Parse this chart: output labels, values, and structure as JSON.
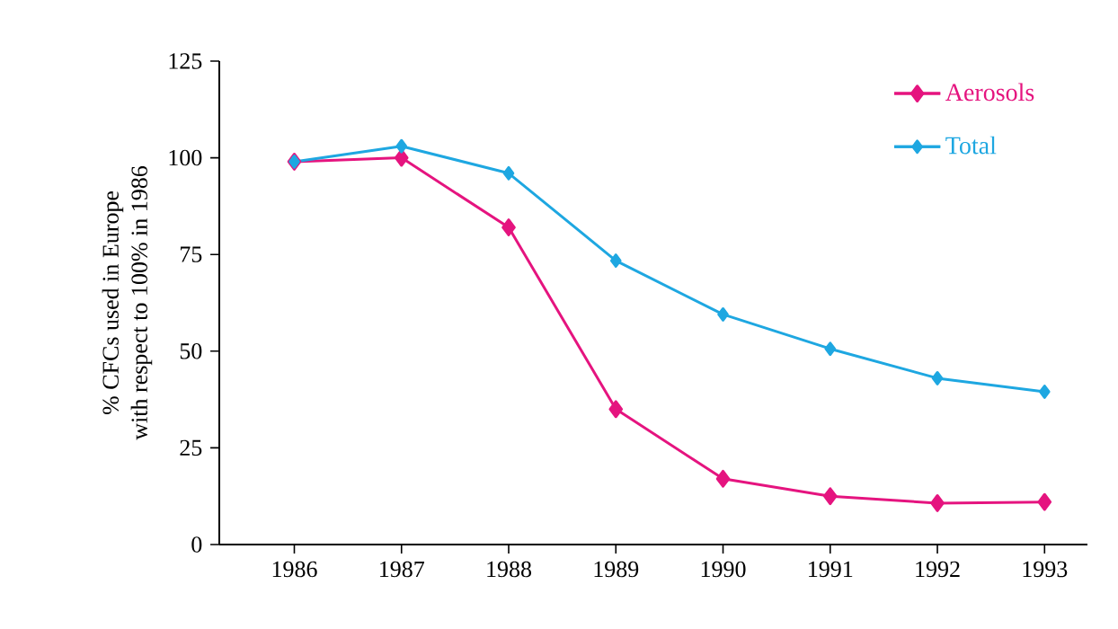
{
  "chart_data": {
    "type": "line",
    "ylabel": "% CFCs used in Europe\nwith respect to 100% in 1986",
    "x": [
      1986,
      1987,
      1988,
      1989,
      1990,
      1991,
      1992,
      1993
    ],
    "series": [
      {
        "name": "Aerosols",
        "color": "#e5147f",
        "values": [
          99,
          100,
          82,
          35,
          17,
          12.5,
          10.7,
          11
        ]
      },
      {
        "name": "Total",
        "color": "#1ea7e1",
        "values": [
          99,
          103,
          96,
          73.4,
          59.5,
          50.6,
          43,
          39.5
        ]
      }
    ],
    "xlim": [
      1985.3,
      1993.4
    ],
    "ylim": [
      0,
      125
    ],
    "xticks": [
      1986,
      1987,
      1988,
      1989,
      1990,
      1991,
      1992,
      1993
    ],
    "yticks": [
      0,
      25,
      50,
      75,
      100,
      125
    ],
    "marker": "diamond",
    "line_style": "solid",
    "grid": false,
    "legend": "top right"
  }
}
